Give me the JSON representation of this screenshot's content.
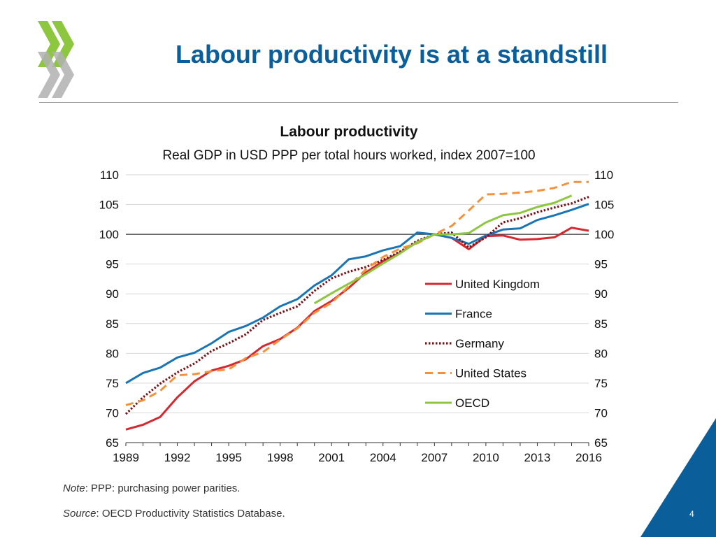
{
  "slide": {
    "title": "Labour productivity is at a standstill",
    "note_prefix": "Note",
    "note_text": ": PPP: purchasing power parities.",
    "source_prefix": "Source",
    "source_text": ": OECD Productivity Statistics Database.",
    "page_number": "4",
    "brand_color": "#0a5e9a",
    "logo_icon": "oecd-chevrons-icon",
    "logo_color": "#8dc63f"
  },
  "chart_data": {
    "type": "line",
    "title": "Labour productivity",
    "subtitle": "Real GDP in USD PPP per total hours worked, index 2007=100",
    "xlabel": "",
    "ylabel": "",
    "xlim": [
      1989,
      2016
    ],
    "ylim": [
      65,
      110
    ],
    "xticks": [
      "1989",
      "1992",
      "1995",
      "1998",
      "2001",
      "2004",
      "2007",
      "2010",
      "2013",
      "2016"
    ],
    "yticks": [
      "65",
      "70",
      "75",
      "80",
      "85",
      "90",
      "95",
      "100",
      "105",
      "110"
    ],
    "y_axis_both_sides": true,
    "grid": "horizontal",
    "reference_line": 100,
    "legend_position": "center-right",
    "series": [
      {
        "name": "United Kingdom",
        "color": "#d7282f",
        "style": "solid",
        "x": [
          1989,
          1990,
          1991,
          1992,
          1993,
          1994,
          1995,
          1996,
          1997,
          1998,
          1999,
          2000,
          2001,
          2002,
          2003,
          2004,
          2005,
          2006,
          2007,
          2008,
          2009,
          2010,
          2011,
          2012,
          2013,
          2014,
          2015,
          2016
        ],
        "values": [
          67.2,
          68.0,
          69.3,
          72.6,
          75.3,
          77.1,
          77.9,
          79.0,
          81.2,
          82.4,
          84.3,
          87.1,
          88.8,
          91.0,
          93.6,
          95.5,
          96.9,
          98.7,
          100.0,
          99.4,
          97.5,
          99.7,
          99.8,
          99.1,
          99.2,
          99.5,
          101.1,
          100.6
        ]
      },
      {
        "name": "France",
        "color": "#1a75b5",
        "style": "solid",
        "x": [
          1989,
          1990,
          1991,
          1992,
          1993,
          1994,
          1995,
          1996,
          1997,
          1998,
          1999,
          2000,
          2001,
          2002,
          2003,
          2004,
          2005,
          2006,
          2007,
          2008,
          2009,
          2010,
          2011,
          2012,
          2013,
          2014,
          2015,
          2016
        ],
        "values": [
          75.0,
          76.7,
          77.6,
          79.3,
          80.1,
          81.7,
          83.6,
          84.6,
          86.0,
          87.9,
          89.1,
          91.4,
          93.1,
          95.8,
          96.3,
          97.3,
          98.0,
          100.3,
          100.0,
          99.4,
          98.4,
          99.8,
          100.8,
          101.0,
          102.4,
          103.2,
          104.1,
          105.1
        ]
      },
      {
        "name": "Germany",
        "color": "#7a1419",
        "style": "dotted",
        "x": [
          1989,
          1990,
          1991,
          1992,
          1993,
          1994,
          1995,
          1996,
          1997,
          1998,
          1999,
          2000,
          2001,
          2002,
          2003,
          2004,
          2005,
          2006,
          2007,
          2008,
          2009,
          2010,
          2011,
          2012,
          2013,
          2014,
          2015,
          2016
        ],
        "values": [
          69.8,
          72.6,
          74.9,
          76.8,
          78.3,
          80.4,
          81.7,
          83.2,
          85.6,
          86.8,
          87.9,
          90.5,
          92.6,
          93.7,
          94.5,
          95.7,
          97.1,
          98.9,
          100.0,
          100.3,
          97.8,
          99.5,
          102.0,
          102.7,
          103.7,
          104.5,
          105.2,
          106.3
        ]
      },
      {
        "name": "United States",
        "color": "#f3923b",
        "style": "dashed",
        "x": [
          1989,
          1990,
          1991,
          1992,
          1993,
          1994,
          1995,
          1996,
          1997,
          1998,
          1999,
          2000,
          2001,
          2002,
          2003,
          2004,
          2005,
          2006,
          2007,
          2008,
          2009,
          2010,
          2011,
          2012,
          2013,
          2014,
          2015,
          2016
        ],
        "values": [
          71.3,
          72.1,
          73.7,
          76.3,
          76.5,
          77.0,
          77.3,
          79.2,
          80.2,
          82.3,
          84.2,
          86.8,
          88.5,
          91.3,
          94.1,
          96.2,
          97.6,
          98.5,
          100.0,
          101.4,
          104.0,
          106.7,
          106.8,
          107.0,
          107.3,
          107.8,
          108.8,
          108.8
        ]
      },
      {
        "name": "OECD",
        "color": "#8dc63f",
        "style": "solid",
        "x": [
          2000,
          2001,
          2002,
          2003,
          2004,
          2005,
          2006,
          2007,
          2008,
          2009,
          2010,
          2011,
          2012,
          2013,
          2014,
          2015
        ],
        "values": [
          88.4,
          90.1,
          91.7,
          93.3,
          95.1,
          96.8,
          98.7,
          100.0,
          100.0,
          100.2,
          102.0,
          103.2,
          103.6,
          104.6,
          105.3,
          106.5
        ]
      }
    ]
  }
}
